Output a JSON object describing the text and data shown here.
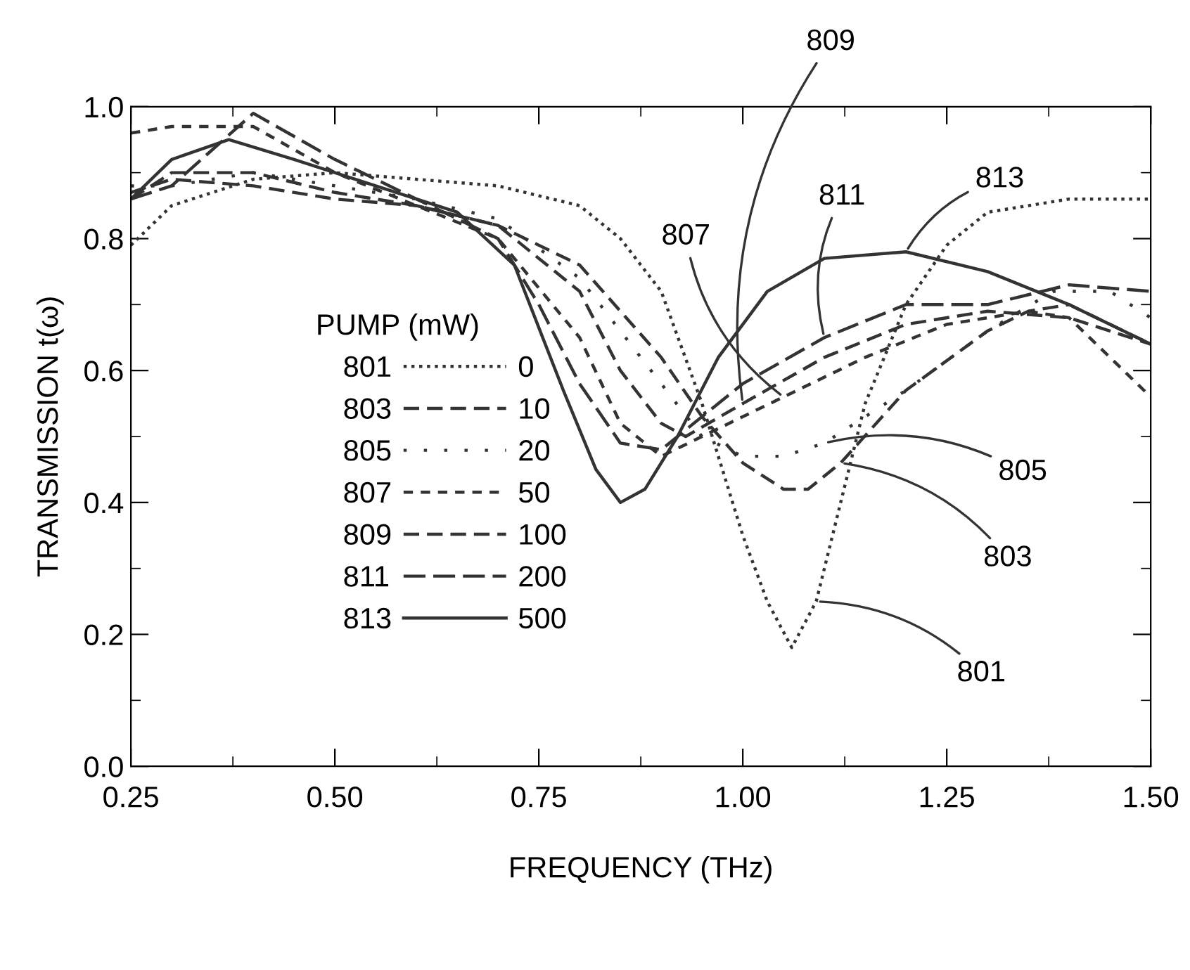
{
  "chart_data": {
    "type": "line",
    "xlabel": "FREQUENCY (THz)",
    "ylabel": "TRANSMISSION t(ω)",
    "legend_title": "PUMP (mW)",
    "legend": "bottom left",
    "grid": false,
    "marker": "none",
    "xlim": [
      0.25,
      1.5
    ],
    "xticks": [
      {
        "value": 0.25,
        "label": "0.25"
      },
      {
        "value": 0.5,
        "label": "0.50"
      },
      {
        "value": 0.75,
        "label": "0.75"
      },
      {
        "value": 1.0,
        "label": "1.00"
      },
      {
        "value": 1.25,
        "label": "1.25"
      },
      {
        "value": 1.5,
        "label": "1.50"
      }
    ],
    "ylim": [
      0.0,
      1.0
    ],
    "yticks": [
      {
        "value": 0.0,
        "label": "0.0"
      },
      0.2,
      0.4,
      0.6,
      0.8,
      {
        "value": 1.0,
        "label": "1.0"
      }
    ],
    "x": [
      0.25,
      0.3,
      0.4,
      0.5,
      0.6,
      0.7,
      0.8,
      0.85,
      0.9,
      0.95,
      1.0,
      1.03,
      1.06,
      1.09,
      1.12,
      1.15,
      1.2,
      1.25,
      1.3,
      1.4,
      1.45,
      1.5
    ],
    "series": [
      {
        "name": "0",
        "color": "#333333",
        "line_style": "dotted",
        "values": [
          0.79,
          0.85,
          0.89,
          0.9,
          0.89,
          0.88,
          0.85,
          0.8,
          0.72,
          0.55,
          0.35,
          0.25,
          0.18,
          0.25,
          0.4,
          0.55,
          0.7,
          0.79,
          0.84,
          0.86,
          0.86,
          0.86
        ]
      },
      {
        "name": "10",
        "color": "#333333",
        "line_style": "dashed",
        "x": [
          0.25,
          0.3,
          0.4,
          0.5,
          0.6,
          0.7,
          0.8,
          0.9,
          0.95,
          1.0,
          1.05,
          1.08,
          1.12,
          1.2,
          1.3,
          1.35,
          1.4,
          1.5
        ],
        "values": [
          0.86,
          0.9,
          0.9,
          0.87,
          0.85,
          0.82,
          0.76,
          0.62,
          0.53,
          0.46,
          0.42,
          0.42,
          0.46,
          0.57,
          0.66,
          0.69,
          0.7,
          0.64
        ]
      },
      {
        "name": "20",
        "color": "#333333",
        "line_style": "dotted",
        "x": [
          0.25,
          0.3,
          0.4,
          0.5,
          0.6,
          0.7,
          0.8,
          0.9,
          0.95,
          1.0,
          1.05,
          1.1,
          1.2,
          1.3,
          1.38,
          1.45,
          1.5
        ],
        "values": [
          0.88,
          0.88,
          0.9,
          0.88,
          0.86,
          0.83,
          0.74,
          0.58,
          0.5,
          0.47,
          0.47,
          0.49,
          0.57,
          0.66,
          0.72,
          0.72,
          0.68
        ]
      },
      {
        "name": "50",
        "color": "#333333",
        "line_style": "dashed",
        "x": [
          0.25,
          0.3,
          0.4,
          0.5,
          0.6,
          0.7,
          0.8,
          0.85,
          0.9,
          0.95,
          1.0,
          1.05,
          1.15,
          1.25,
          1.35,
          1.4,
          1.5
        ],
        "values": [
          0.96,
          0.97,
          0.97,
          0.9,
          0.85,
          0.8,
          0.65,
          0.52,
          0.47,
          0.5,
          0.53,
          0.56,
          0.62,
          0.67,
          0.69,
          0.68,
          0.56
        ]
      },
      {
        "name": "100",
        "color": "#333333",
        "line_style": "dashed",
        "x": [
          0.25,
          0.3,
          0.4,
          0.5,
          0.6,
          0.7,
          0.8,
          0.85,
          0.9,
          0.93,
          1.0,
          1.1,
          1.2,
          1.3,
          1.4,
          1.5
        ],
        "values": [
          0.87,
          0.89,
          0.88,
          0.86,
          0.85,
          0.82,
          0.72,
          0.6,
          0.52,
          0.5,
          0.55,
          0.62,
          0.67,
          0.69,
          0.68,
          0.64
        ]
      },
      {
        "name": "200",
        "color": "#333333",
        "line_style": "dashed",
        "x": [
          0.25,
          0.3,
          0.4,
          0.5,
          0.6,
          0.7,
          0.75,
          0.8,
          0.85,
          0.9,
          0.95,
          1.0,
          1.1,
          1.2,
          1.3,
          1.4,
          1.5
        ],
        "values": [
          0.86,
          0.88,
          0.99,
          0.92,
          0.86,
          0.8,
          0.7,
          0.58,
          0.49,
          0.48,
          0.53,
          0.58,
          0.65,
          0.7,
          0.7,
          0.73,
          0.72
        ]
      },
      {
        "name": "500",
        "color": "#333333",
        "line_style": "solid",
        "x": [
          0.25,
          0.3,
          0.37,
          0.45,
          0.55,
          0.65,
          0.72,
          0.78,
          0.82,
          0.85,
          0.88,
          0.92,
          0.97,
          1.03,
          1.1,
          1.2,
          1.3,
          1.4,
          1.5
        ],
        "values": [
          0.86,
          0.92,
          0.95,
          0.92,
          0.88,
          0.84,
          0.76,
          0.57,
          0.45,
          0.4,
          0.42,
          0.5,
          0.62,
          0.72,
          0.77,
          0.78,
          0.75,
          0.7,
          0.64
        ]
      }
    ],
    "annotations": [
      {
        "text": "801",
        "x": 1.09,
        "y": 0.25
      },
      {
        "text": "803",
        "x": 1.12,
        "y": 0.46
      },
      {
        "text": "805",
        "x": 1.1,
        "y": 0.49
      },
      {
        "text": "807",
        "x": 1.05,
        "y": 0.56
      },
      {
        "text": "809",
        "x": 1.0,
        "y": 0.55
      },
      {
        "text": "811",
        "x": 1.1,
        "y": 0.65
      },
      {
        "text": "813",
        "x": 1.2,
        "y": 0.78
      }
    ]
  }
}
